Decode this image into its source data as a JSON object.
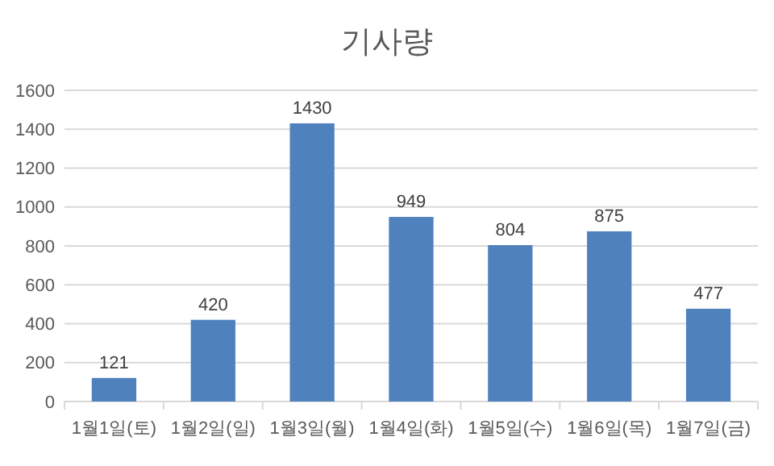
{
  "chart_data": {
    "type": "bar",
    "title": "기사량",
    "categories": [
      "1월1일(토)",
      "1월2일(일)",
      "1월3일(월)",
      "1월4일(화)",
      "1월5일(수)",
      "1월6일(목)",
      "1월7일(금)"
    ],
    "values": [
      121,
      420,
      1430,
      949,
      804,
      875,
      477
    ],
    "color": "#4f81bd",
    "ylim": [
      0,
      1600
    ],
    "yticks": [
      0,
      200,
      400,
      600,
      800,
      1000,
      1200,
      1400,
      1600
    ],
    "grid": "y",
    "data_labels": true
  }
}
